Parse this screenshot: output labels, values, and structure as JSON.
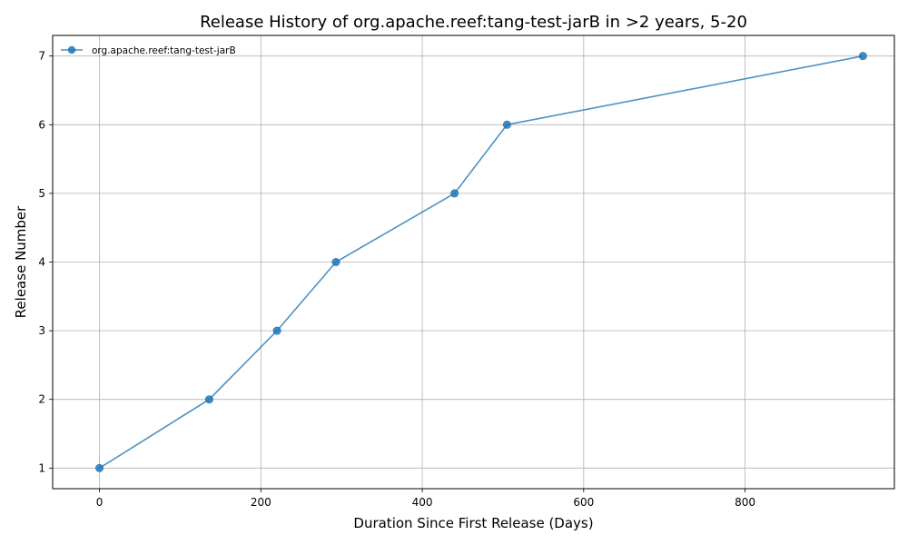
{
  "chart_data": {
    "type": "line",
    "title": "Release History of org.apache.reef:tang-test-jarB in >2 years, 5-20",
    "xlabel": "Duration Since First Release (Days)",
    "ylabel": "Release Number",
    "xlim": [
      -58,
      985
    ],
    "ylim": [
      0.7,
      7.3
    ],
    "xticks": [
      0,
      200,
      400,
      600,
      800
    ],
    "yticks": [
      1,
      2,
      3,
      4,
      5,
      6,
      7
    ],
    "grid": true,
    "legend_position": "top-left",
    "series": [
      {
        "name": "org.apache.reef:tang-test-jarB",
        "color": "#1f77b4",
        "marker": "circle",
        "x": [
          0,
          136,
          220,
          293,
          440,
          505,
          946
        ],
        "y": [
          1,
          2,
          3,
          4,
          5,
          6,
          7
        ]
      }
    ]
  }
}
